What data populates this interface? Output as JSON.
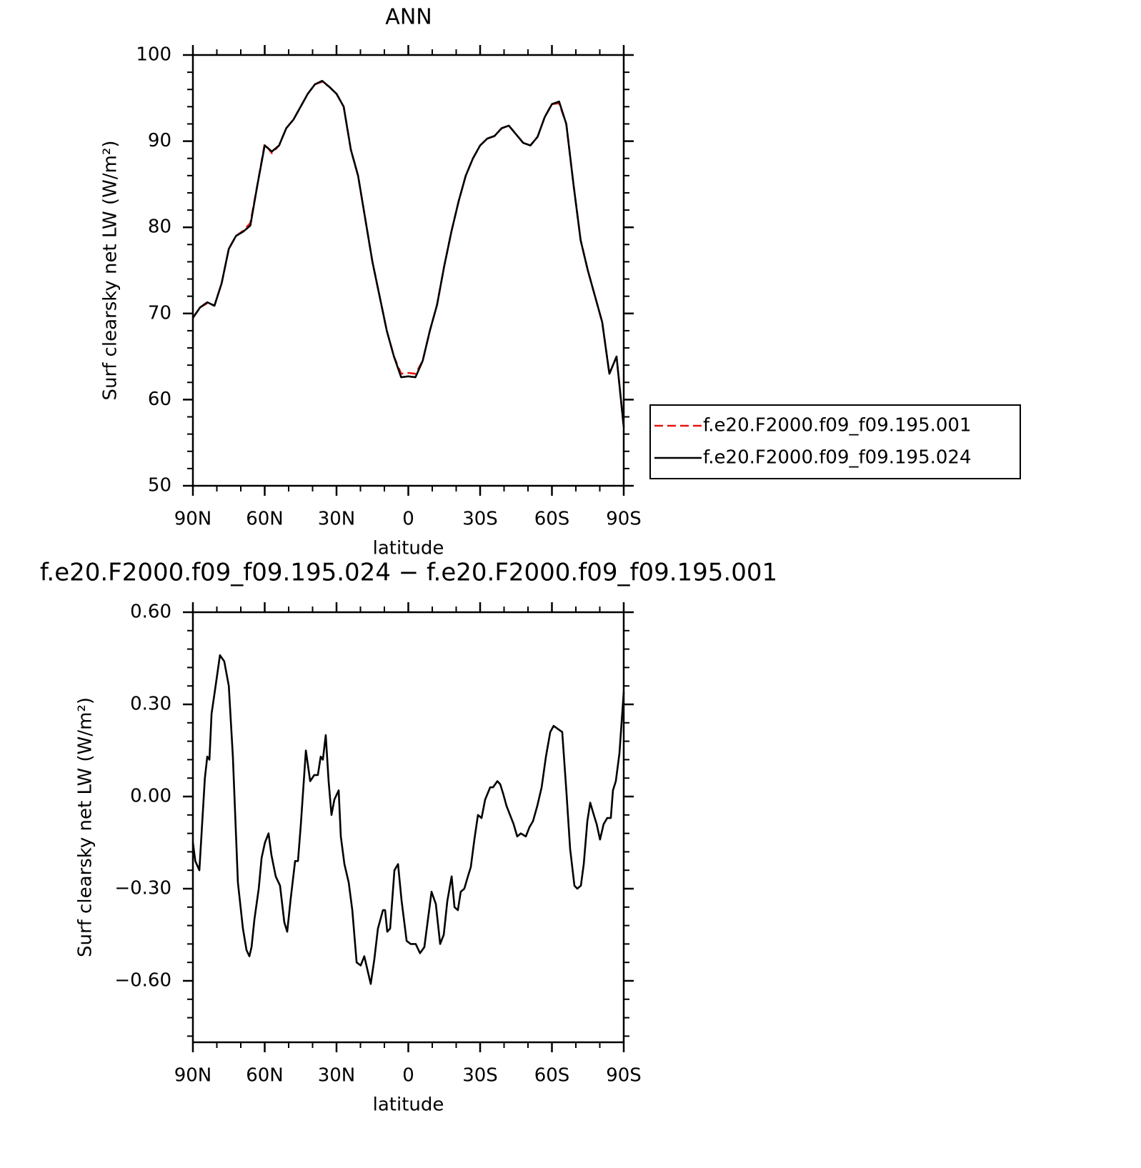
{
  "chart_data": [
    {
      "type": "line",
      "title": "ANN",
      "xlabel": "latitude",
      "ylabel": "Surf clearsky net LW (W/m²)",
      "xlim": [
        90,
        -90
      ],
      "ylim": [
        50,
        100
      ],
      "xticks": [
        {
          "value": 90,
          "label": "90N"
        },
        {
          "value": 60,
          "label": "60N"
        },
        {
          "value": 30,
          "label": "30N"
        },
        0,
        {
          "value": -30,
          "label": "30S"
        },
        {
          "value": -60,
          "label": "60S"
        },
        {
          "value": -90,
          "label": "90S"
        }
      ],
      "yticks": [
        50,
        60,
        70,
        80,
        90,
        100
      ],
      "legend": "right",
      "x": [
        90,
        87,
        84,
        81,
        78,
        75,
        72,
        69,
        66,
        63,
        60,
        57,
        54,
        51,
        48,
        45,
        42,
        39,
        36,
        33,
        30,
        27,
        24,
        21,
        18,
        15,
        12,
        9,
        6,
        3,
        0,
        -3,
        -6,
        -9,
        -12,
        -15,
        -18,
        -21,
        -24,
        -27,
        -30,
        -33,
        -36,
        -39,
        -42,
        -45,
        -48,
        -51,
        -54,
        -57,
        -60,
        -63,
        -66,
        -69,
        -72,
        -75,
        -78,
        -81,
        -84,
        -87,
        -90
      ],
      "series": [
        {
          "name": "f.e20.F2000.f09_f09.195.001",
          "color": "#e8130f",
          "dash": true,
          "values": [
            69.5,
            70.7,
            71.2,
            70.9,
            73.5,
            77.5,
            79,
            79.6,
            80.5,
            85,
            89.7,
            88.6,
            89.5,
            91.5,
            92.5,
            94,
            95.5,
            96.6,
            96.9,
            96.3,
            95.5,
            94,
            89,
            86,
            81,
            76,
            72,
            68,
            65,
            63.0,
            63.1,
            63.0,
            64.5,
            68,
            71,
            75.5,
            79.5,
            83,
            86,
            88,
            89.5,
            90.3,
            90.6,
            91.5,
            91.8,
            90.8,
            89.8,
            89.5,
            90.5,
            92.8,
            94.3,
            94.4,
            92,
            85,
            78.5,
            75,
            72,
            69,
            63,
            65,
            56.8
          ]
        },
        {
          "name": "f.e20.F2000.f09_f09.195.024",
          "color": "#000000",
          "dash": false,
          "values": [
            69.5,
            70.7,
            71.3,
            70.9,
            73.5,
            77.5,
            79,
            79.5,
            80.2,
            85,
            89.5,
            88.8,
            89.5,
            91.5,
            92.5,
            94,
            95.5,
            96.6,
            97,
            96.3,
            95.5,
            94,
            89,
            86,
            81,
            76,
            72,
            68,
            65,
            62.6,
            62.7,
            62.6,
            64.5,
            68,
            71,
            75.5,
            79.5,
            83,
            86,
            88,
            89.5,
            90.3,
            90.6,
            91.5,
            91.8,
            90.8,
            89.8,
            89.5,
            90.5,
            92.8,
            94.3,
            94.6,
            92,
            85,
            78.5,
            75,
            72,
            69,
            63,
            65,
            56.8
          ]
        }
      ]
    },
    {
      "type": "line",
      "title": "f.e20.F2000.f09_f09.195.024 − f.e20.F2000.f09_f09.195.001",
      "xlabel": "latitude",
      "ylabel": "Surf clearsky net LW (W/m²)",
      "xlim": [
        90,
        -90
      ],
      "ylim": [
        -0.8,
        0.6
      ],
      "xticks": [
        {
          "value": 90,
          "label": "90N"
        },
        {
          "value": 60,
          "label": "60N"
        },
        {
          "value": 30,
          "label": "30N"
        },
        0,
        {
          "value": -30,
          "label": "30S"
        },
        {
          "value": -60,
          "label": "60S"
        },
        {
          "value": -90,
          "label": "90S"
        }
      ],
      "yticks": [
        {
          "value": -0.6,
          "label": "−0.60"
        },
        {
          "value": -0.3,
          "label": "−0.30"
        },
        {
          "value": 0,
          "label": "0.00"
        },
        {
          "value": 0.3,
          "label": "0.30"
        },
        {
          "value": 0.6,
          "label": "0.60"
        }
      ],
      "x": [
        90,
        89,
        87.3,
        85,
        84,
        83.1,
        82.2,
        80.7,
        78.7,
        76.9,
        75,
        73.3,
        71.2,
        69.1,
        67.6,
        66.4,
        65.5,
        64.3,
        62.5,
        61.3,
        59.9,
        58.4,
        57.2,
        55.4,
        53.6,
        51.8,
        50.6,
        49.1,
        47.3,
        46.1,
        44.9,
        42.8,
        41,
        39.3,
        37.8,
        36.6,
        35.7,
        34.5,
        33.3,
        32.1,
        30.9,
        29.1,
        28.2,
        26.7,
        24.9,
        23.4,
        21.6,
        19.9,
        18.4,
        17.2,
        15.7,
        14.2,
        12.7,
        10.6,
        9.7,
        8.8,
        7.6,
        5.8,
        4.3,
        2.8,
        0.7,
        -1,
        -3.1,
        -4.9,
        -6.7,
        -8.2,
        -9.7,
        -11.5,
        -13.3,
        -14.8,
        -16.3,
        -18.1,
        -19.3,
        -20.7,
        -21.9,
        -23.4,
        -24.9,
        -26.1,
        -27.6,
        -29.1,
        -30.6,
        -32.1,
        -34.2,
        -35.4,
        -37.2,
        -38.4,
        -39.6,
        -41,
        -42.5,
        -44,
        -45.5,
        -47,
        -49.1,
        -50.6,
        -52.1,
        -53.9,
        -55.7,
        -57.5,
        -59.3,
        -60.7,
        -62.5,
        -64.3,
        -66.1,
        -67.6,
        -69.4,
        -70.6,
        -72.1,
        -73.3,
        -74.8,
        -76,
        -77.5,
        -78.7,
        -80.1,
        -81.6,
        -83.1,
        -84.6,
        -85.5,
        -86.7,
        -88.2,
        -90
      ],
      "series": [
        {
          "color": "#000000",
          "dash": false,
          "values": [
            -0.15,
            -0.21,
            -0.24,
            0.06,
            0.13,
            0.12,
            0.27,
            0.35,
            0.46,
            0.44,
            0.36,
            0.13,
            -0.28,
            -0.43,
            -0.5,
            -0.52,
            -0.49,
            -0.4,
            -0.3,
            -0.2,
            -0.15,
            -0.12,
            -0.19,
            -0.26,
            -0.29,
            -0.41,
            -0.44,
            -0.33,
            -0.21,
            -0.21,
            -0.09,
            0.15,
            0.05,
            0.07,
            0.07,
            0.13,
            0.12,
            0.2,
            0.05,
            -0.06,
            -0.01,
            0.02,
            -0.13,
            -0.22,
            -0.28,
            -0.37,
            -0.54,
            -0.55,
            -0.52,
            -0.56,
            -0.61,
            -0.53,
            -0.43,
            -0.37,
            -0.37,
            -0.44,
            -0.43,
            -0.24,
            -0.22,
            -0.34,
            -0.47,
            -0.48,
            -0.48,
            -0.51,
            -0.49,
            -0.4,
            -0.31,
            -0.35,
            -0.48,
            -0.45,
            -0.34,
            -0.26,
            -0.36,
            -0.37,
            -0.31,
            -0.3,
            -0.26,
            -0.23,
            -0.14,
            -0.06,
            -0.07,
            -0.01,
            0.03,
            0.03,
            0.05,
            0.04,
            0.01,
            -0.03,
            -0.06,
            -0.09,
            -0.13,
            -0.12,
            -0.13,
            -0.1,
            -0.08,
            -0.03,
            0.03,
            0.13,
            0.21,
            0.23,
            0.22,
            0.21,
            0.01,
            -0.17,
            -0.29,
            -0.3,
            -0.29,
            -0.22,
            -0.08,
            -0.02,
            -0.06,
            -0.09,
            -0.14,
            -0.09,
            -0.07,
            -0.07,
            0.02,
            0.05,
            0.14,
            0.34
          ]
        }
      ]
    }
  ]
}
